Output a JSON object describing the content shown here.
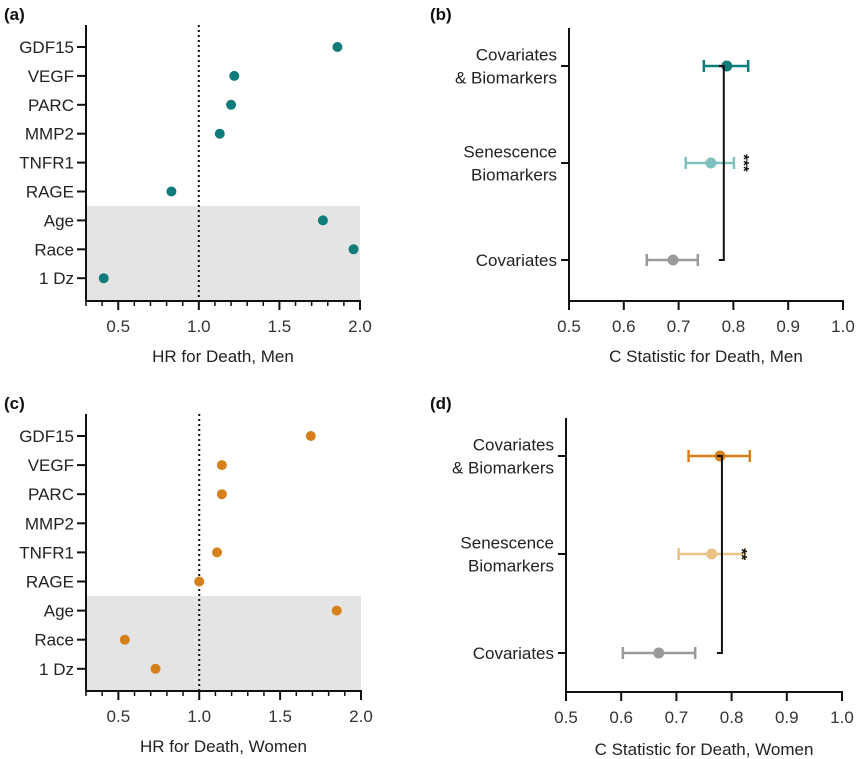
{
  "colors": {
    "men": "#0f7b7b",
    "men_light": "#7fc1bf",
    "women": "#d5801a",
    "women_light": "#ebc285",
    "covariates": "#9a9a9a",
    "band": "#e4e4e4",
    "axis": "#111111"
  },
  "chart_data": [
    {
      "panel": "(a)",
      "type": "scatter",
      "xlabel": "HR for Death, Men",
      "ylabel": "",
      "xlim": [
        0.3,
        2.0
      ],
      "xticks": [
        "0.5",
        "1.0",
        "1.5",
        "2.0"
      ],
      "xtick_values": [
        0.5,
        1.0,
        1.5,
        2.0
      ],
      "minor_tick_step": 0.1,
      "reference_line": 1.0,
      "shaded_categories": [
        "Age",
        "Race",
        "1 Dz"
      ],
      "categories": [
        "GDF15",
        "VEGF",
        "PARC",
        "MMP2",
        "TNFR1",
        "RAGE",
        "Age",
        "Race",
        "1 Dz"
      ],
      "values": [
        1.86,
        1.22,
        1.2,
        1.13,
        null,
        0.83,
        1.77,
        1.96,
        0.41
      ],
      "color_key": "men"
    },
    {
      "panel": "(b)",
      "type": "scatter",
      "xlabel": "C Statistic for Death, Men",
      "ylabel": "",
      "xlim": [
        0.5,
        1.0
      ],
      "xticks": [
        "0.5",
        "0.6",
        "0.7",
        "0.8",
        "0.9",
        "1.0"
      ],
      "xtick_values": [
        0.5,
        0.6,
        0.7,
        0.8,
        0.9,
        1.0
      ],
      "categories": [
        {
          "lines": [
            "Covariates",
            "& Biomarkers"
          ]
        },
        {
          "lines": [
            "Senescence",
            "Biomarkers"
          ]
        },
        {
          "lines": [
            "Covariates"
          ]
        }
      ],
      "series": [
        {
          "name": "Covariates & Biomarkers",
          "value": 0.788,
          "ci": [
            0.746,
            0.827
          ],
          "color_key": "men"
        },
        {
          "name": "Senescence Biomarkers",
          "value": 0.759,
          "ci": [
            0.713,
            0.801
          ],
          "color_key": "men_light"
        },
        {
          "name": "Covariates",
          "value": 0.69,
          "ci": [
            0.642,
            0.735
          ],
          "color_key": "covariates"
        }
      ],
      "significance": {
        "between": [
          "Covariates & Biomarkers",
          "Covariates"
        ],
        "label": "***"
      }
    },
    {
      "panel": "(c)",
      "type": "scatter",
      "xlabel": "HR for Death, Women",
      "ylabel": "",
      "xlim": [
        0.3,
        2.0
      ],
      "xticks": [
        "0.5",
        "1.0",
        "1.5",
        "2.0"
      ],
      "xtick_values": [
        0.5,
        1.0,
        1.5,
        2.0
      ],
      "minor_tick_step": 0.1,
      "reference_line": 1.0,
      "shaded_categories": [
        "Age",
        "Race",
        "1 Dz"
      ],
      "categories": [
        "GDF15",
        "VEGF",
        "PARC",
        "MMP2",
        "TNFR1",
        "RAGE",
        "Age",
        "Race",
        "1 Dz"
      ],
      "values": [
        1.69,
        1.14,
        1.14,
        null,
        1.11,
        1.0,
        1.85,
        0.54,
        0.73
      ],
      "color_key": "women"
    },
    {
      "panel": "(d)",
      "type": "scatter",
      "xlabel": "C Statistic for Death, Women",
      "ylabel": "",
      "xlim": [
        0.5,
        1.0
      ],
      "xticks": [
        "0.5",
        "0.6",
        "0.7",
        "0.8",
        "0.9",
        "1.0"
      ],
      "xtick_values": [
        0.5,
        0.6,
        0.7,
        0.8,
        0.9,
        1.0
      ],
      "categories": [
        {
          "lines": [
            "Covariates",
            "& Biomarkers"
          ]
        },
        {
          "lines": [
            "Senescence",
            "Biomarkers"
          ]
        },
        {
          "lines": [
            "Covariates"
          ]
        }
      ],
      "series": [
        {
          "name": "Covariates & Biomarkers",
          "value": 0.779,
          "ci": [
            0.722,
            0.833
          ],
          "color_key": "women"
        },
        {
          "name": "Senescence Biomarkers",
          "value": 0.764,
          "ci": [
            0.704,
            0.824
          ],
          "color_key": "women_light"
        },
        {
          "name": "Covariates",
          "value": 0.668,
          "ci": [
            0.603,
            0.734
          ],
          "color_key": "covariates"
        }
      ],
      "significance": {
        "between": [
          "Covariates & Biomarkers",
          "Covariates"
        ],
        "label": "**"
      }
    }
  ]
}
